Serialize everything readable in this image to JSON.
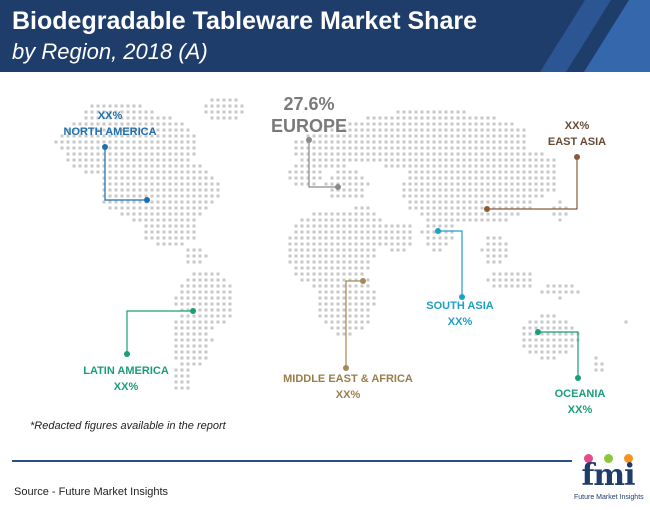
{
  "header": {
    "title": "Biodegradable Tableware Market Share",
    "subtitle": "by Region, 2018 (A)"
  },
  "colors": {
    "header_bg": "#1f3d6b",
    "map_dots": "#c8c8c8",
    "north_america": "#1f6fae",
    "europe": "#8a8a8a",
    "east_asia": "#8a5a3a",
    "south_asia": "#1ea0c4",
    "latin_america": "#1a9e7a",
    "middle_east_africa": "#a58a55",
    "oceania": "#1a9e7a"
  },
  "regions": {
    "north_america": {
      "value": "XX%",
      "name": "NORTH AMERICA"
    },
    "europe": {
      "value": "27.6%",
      "name": "EUROPE"
    },
    "east_asia": {
      "value": "XX%",
      "name": "EAST ASIA"
    },
    "south_asia": {
      "name": "SOUTH ASIA",
      "value": "XX%"
    },
    "latin_america": {
      "name": "LATIN AMERICA",
      "value": "XX%"
    },
    "middle_east_africa": {
      "name": "MIDDLE EAST & AFRICA",
      "value": "XX%"
    },
    "oceania": {
      "name": "OCEANIA",
      "value": "XX%"
    }
  },
  "footnote": "*Redacted figures available in the report",
  "source": "Source - Future Market Insights",
  "logo": {
    "mark": "fmi",
    "tagline": "Future Market Insights"
  }
}
